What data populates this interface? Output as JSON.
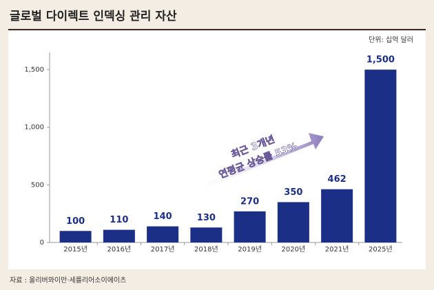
{
  "chart_data": {
    "type": "bar",
    "title": "글로벌 다이렉트 인덱싱 관리 자산",
    "unit": "단위: 십억 달러",
    "source": "자료 : 올리버와이만·세를리어소이에이츠",
    "annotation": [
      "최근 3개년",
      "연평균 상승률 53%"
    ],
    "categories": [
      "2015년",
      "2016년",
      "2017년",
      "2018년",
      "2019년",
      "2020년",
      "2021년",
      "2025년"
    ],
    "values": [
      100,
      110,
      140,
      130,
      270,
      350,
      462,
      1500
    ],
    "value_labels": [
      "100",
      "110",
      "140",
      "130",
      "270",
      "350",
      "462",
      "1,500"
    ],
    "color": "#1b2f87",
    "ylim": [
      0,
      1650
    ],
    "yticks": [
      0,
      500,
      {
        "value": 1000,
        "label": "1,000"
      },
      {
        "value": 1500,
        "label": "1,500"
      }
    ]
  }
}
